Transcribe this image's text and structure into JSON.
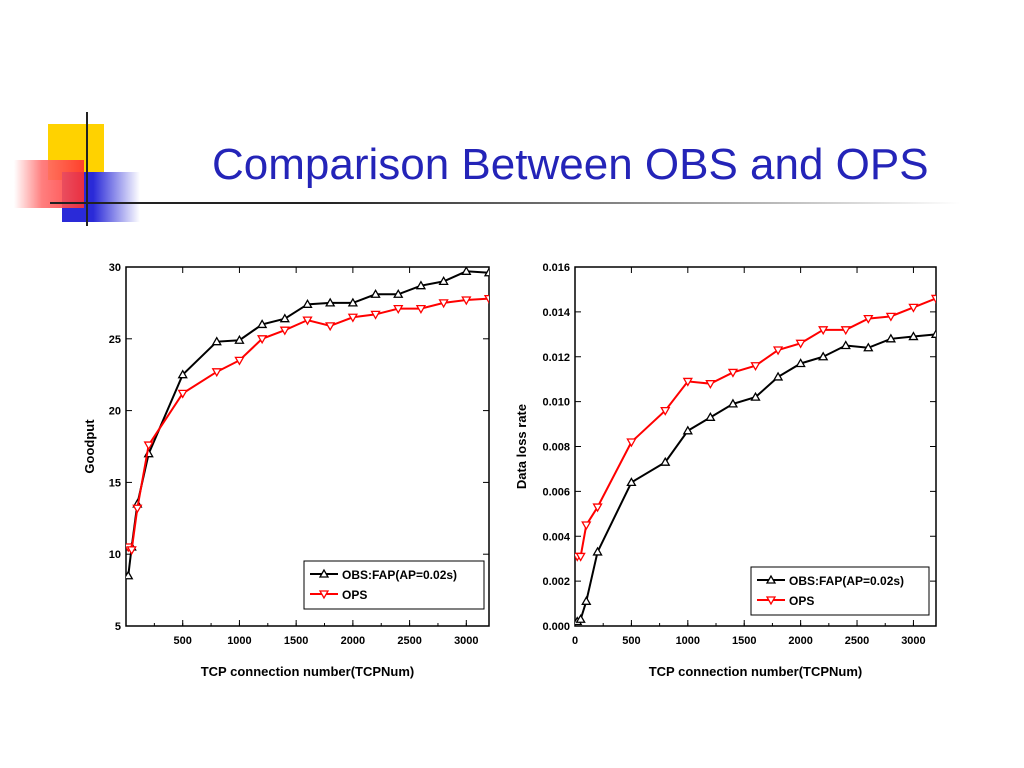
{
  "slide": {
    "title": "Comparison Between OBS and OPS"
  },
  "chart_data": [
    {
      "type": "line",
      "xlabel": "TCP connection number(TCPNum)",
      "ylabel": "Goodput",
      "xlim": [
        0,
        3200
      ],
      "ylim": [
        5,
        30
      ],
      "xticks": [
        500,
        1000,
        1500,
        2000,
        2500,
        3000
      ],
      "yticks": [
        5,
        10,
        15,
        20,
        25,
        30
      ],
      "xtick_labels": [
        "500",
        "1000",
        "1500",
        "2000",
        "2500",
        "3000"
      ],
      "ytick_labels": [
        "5",
        "10",
        "15",
        "20",
        "25",
        "30"
      ],
      "legend_position": "bottom-right",
      "grid": false,
      "series": [
        {
          "name": "OBS:FAP(AP=0.02s)",
          "color": "#000000",
          "marker": "triangle-up",
          "x": [
            20,
            50,
            100,
            200,
            500,
            800,
            1000,
            1200,
            1400,
            1600,
            1800,
            2000,
            2200,
            2400,
            2600,
            2800,
            3000,
            3200
          ],
          "y": [
            8.5,
            10.5,
            13.5,
            17.0,
            22.5,
            24.8,
            24.9,
            26.0,
            26.4,
            27.4,
            27.5,
            27.5,
            28.1,
            28.1,
            28.7,
            29.0,
            29.7,
            29.6
          ]
        },
        {
          "name": "OPS",
          "color": "#ff0000",
          "marker": "triangle-down",
          "x": [
            20,
            50,
            100,
            200,
            500,
            800,
            1000,
            1200,
            1400,
            1600,
            1800,
            2000,
            2200,
            2400,
            2600,
            2800,
            3000,
            3200
          ],
          "y": [
            10.5,
            10.3,
            13.2,
            17.6,
            21.2,
            22.7,
            23.5,
            25.0,
            25.6,
            26.3,
            25.9,
            26.5,
            26.7,
            27.1,
            27.1,
            27.5,
            27.7,
            27.8
          ]
        }
      ]
    },
    {
      "type": "line",
      "xlabel": "TCP connection number(TCPNum)",
      "ylabel": "Data loss rate",
      "xlim": [
        0,
        3200
      ],
      "ylim": [
        0,
        0.016
      ],
      "xticks": [
        0,
        500,
        1000,
        1500,
        2000,
        2500,
        3000
      ],
      "yticks": [
        0,
        0.002,
        0.004,
        0.006,
        0.008,
        0.01,
        0.012,
        0.014,
        0.016
      ],
      "xtick_labels": [
        "0",
        "500",
        "1000",
        "1500",
        "2000",
        "2500",
        "3000"
      ],
      "ytick_labels": [
        "0.000",
        "0.002",
        "0.004",
        "0.006",
        "0.008",
        "0.010",
        "0.012",
        "0.014",
        "0.016"
      ],
      "legend_position": "bottom-right",
      "grid": false,
      "series": [
        {
          "name": "OBS:FAP(AP=0.02s)",
          "color": "#000000",
          "marker": "triangle-up",
          "x": [
            20,
            50,
            100,
            200,
            500,
            800,
            1000,
            1200,
            1400,
            1600,
            1800,
            2000,
            2200,
            2400,
            2600,
            2800,
            3000,
            3200
          ],
          "y": [
            0.0002,
            0.0003,
            0.0011,
            0.0033,
            0.0064,
            0.0073,
            0.0087,
            0.0093,
            0.0099,
            0.0102,
            0.0111,
            0.0117,
            0.012,
            0.0125,
            0.0124,
            0.0128,
            0.0129,
            0.013
          ]
        },
        {
          "name": "OPS",
          "color": "#ff0000",
          "marker": "triangle-down",
          "x": [
            20,
            50,
            100,
            200,
            500,
            800,
            1000,
            1200,
            1400,
            1600,
            1800,
            2000,
            2200,
            2400,
            2600,
            2800,
            3000,
            3200
          ],
          "y": [
            0.0031,
            0.0031,
            0.0045,
            0.0053,
            0.0082,
            0.0096,
            0.0109,
            0.0108,
            0.0113,
            0.0116,
            0.0123,
            0.0126,
            0.0132,
            0.0132,
            0.0137,
            0.0138,
            0.0142,
            0.0146
          ]
        }
      ]
    }
  ]
}
